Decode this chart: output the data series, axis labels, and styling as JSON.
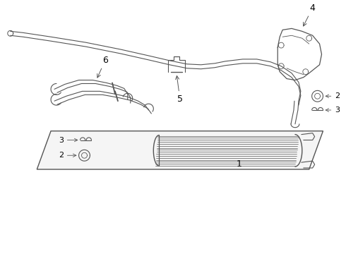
{
  "bg_color": "#ffffff",
  "line_color": "#555555",
  "label_color": "#000000",
  "fig_width": 4.9,
  "fig_height": 3.6,
  "dpi": 100,
  "panel_fill": "#f0f0f0",
  "panel_edge": "#555555"
}
